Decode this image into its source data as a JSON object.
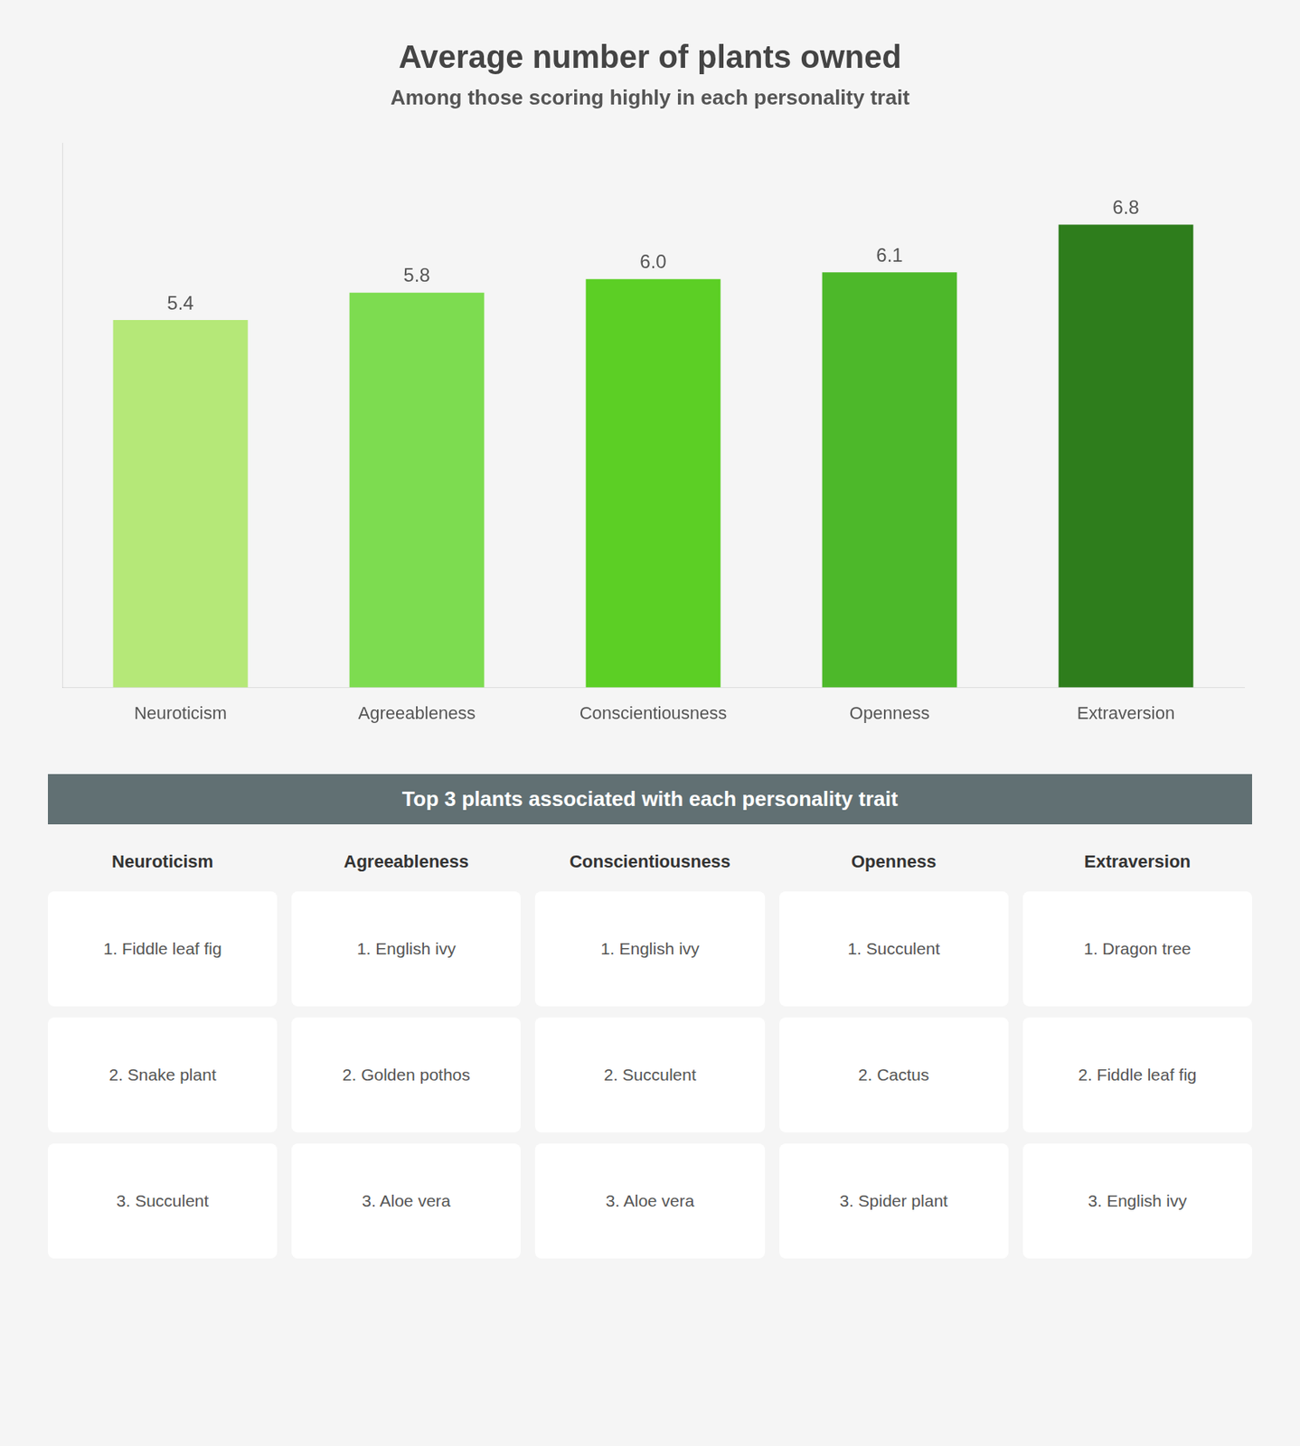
{
  "chart_data": {
    "type": "bar",
    "title": "Average number of plants owned",
    "subtitle": "Among those scoring highly in each personality trait",
    "categories": [
      "Neuroticism",
      "Agreeableness",
      "Conscientiousness",
      "Openness",
      "Extraversion"
    ],
    "values": [
      5.4,
      5.8,
      6.0,
      6.1,
      6.8
    ],
    "value_labels": [
      "5.4",
      "5.8",
      "6.0",
      "6.1",
      "6.8"
    ],
    "colors": [
      "#b5e878",
      "#7ddc50",
      "#5ccf25",
      "#4db82a",
      "#2e7d1c"
    ],
    "ylim": [
      0,
      8
    ],
    "grid": false,
    "data_labels": true,
    "tick_labels": "x",
    "annotations": [
      {
        "text": "Top 3 plants associated with each personality trait"
      }
    ],
    "plant_table": [
      {
        "header": "Neuroticism",
        "items": [
          "1. Fiddle leaf fig",
          "2. Snake plant",
          "3. Succulent"
        ]
      },
      {
        "header": "Agreeableness",
        "items": [
          "1. English ivy",
          "2. Golden pothos",
          "3. Aloe vera"
        ]
      },
      {
        "header": "Conscientiousness",
        "items": [
          "1. English ivy",
          "2. Succulent",
          "3. Aloe vera"
        ]
      },
      {
        "header": "Openness",
        "items": [
          "1. Succulent",
          "2. Cactus",
          "3. Spider plant"
        ]
      },
      {
        "header": "Extraversion",
        "items": [
          "1. Dragon tree",
          "2. Fiddle leaf fig",
          "3. English ivy"
        ]
      }
    ]
  }
}
